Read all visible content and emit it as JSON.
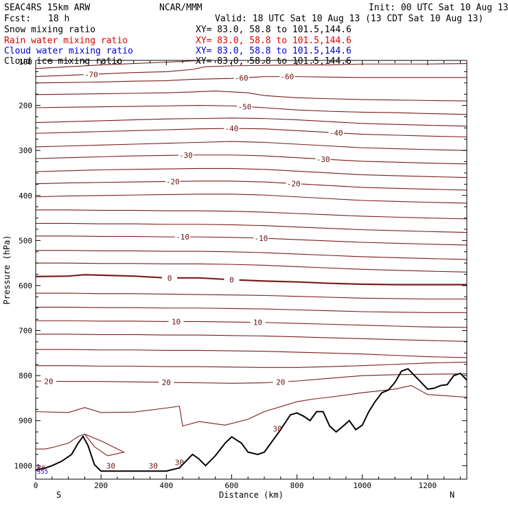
{
  "header": {
    "model": "SEAC4RS 15km ARW",
    "center": "NCAR/MMM",
    "init": "Init: 00 UTC Sat 10 Aug 13",
    "fcst_label": "Fcst:",
    "fcst_value": "18 h",
    "valid": "Valid: 18 UTC Sat 10 Aug 13 (13 CDT Sat 10 Aug 13)",
    "fields": [
      {
        "name": "Snow mixing ratio",
        "xy": "XY=  83.0, 58.8 to 101.5,144.6",
        "color": "#000000"
      },
      {
        "name": "Rain water mixing ratio",
        "xy": "XY=  83.0, 58.8 to 101.5,144.6",
        "color": "#e00000"
      },
      {
        "name": "Cloud water mixing ratio",
        "xy": "XY=  83.0, 58.8 to 101.5,144.6",
        "color": "#0000d0"
      },
      {
        "name": "Cloud ice mixing ratio",
        "xy": "XY=  83.0, 58.8 to 101.5,144.6",
        "color": "#000000"
      }
    ]
  },
  "chart_data": {
    "type": "line",
    "title": "",
    "xlabel": "Distance (km)",
    "ylabel": "Pressure (hPa)",
    "xlim": [
      0,
      1320
    ],
    "ylim": [
      1030,
      100
    ],
    "x_ticks": [
      0,
      200,
      400,
      600,
      800,
      1000,
      1200
    ],
    "y_ticks": [
      200,
      300,
      400,
      500,
      600,
      700,
      800,
      900,
      1000
    ],
    "y_top_tick_label": "100",
    "end_labels": {
      "left": "S",
      "right": "N"
    },
    "contour_color": "#7a1a1a",
    "terrain_color": "#000000",
    "isotherms": [
      {
        "x": [
          0,
          100,
          200,
          300,
          400,
          480,
          550,
          600,
          700,
          800,
          900,
          1000,
          1100,
          1200,
          1320
        ],
        "y": [
          118,
          114,
          110,
          107,
          104,
          101,
          99,
          98,
          93,
          89,
          85,
          81,
          78,
          75,
          72
        ],
        "label": ""
      },
      {
        "x": [
          0,
          100,
          200,
          300,
          400,
          480,
          520,
          600,
          700,
          800,
          900,
          1000,
          1100,
          1200,
          1320
        ],
        "y": [
          136,
          133,
          130,
          127,
          125,
          120,
          114,
          112,
          111,
          110,
          110,
          108,
          108,
          108,
          107
        ],
        "label": "-70",
        "label_x": [
          170
        ]
      },
      {
        "x": [
          0,
          100,
          200,
          300,
          400,
          480,
          600,
          700,
          800,
          900,
          1000,
          1100,
          1200,
          1320
        ],
        "y": [
          150,
          149,
          148,
          146,
          145,
          142,
          140,
          136,
          136,
          137,
          138,
          138,
          138,
          138
        ],
        "label": "-60",
        "label_x": [
          630,
          770
        ]
      },
      {
        "x": [
          0,
          100,
          200,
          300,
          400,
          480,
          550,
          650,
          700,
          800,
          900,
          1000,
          1100,
          1200,
          1320
        ],
        "y": [
          176,
          175,
          174,
          173,
          172,
          170,
          168,
          172,
          178,
          183,
          185,
          187,
          188,
          189,
          190
        ],
        "label": ""
      },
      {
        "x": [
          0,
          100,
          200,
          300,
          400,
          500,
          600,
          700,
          800,
          900,
          1000,
          1100,
          1200,
          1320
        ],
        "y": [
          205,
          204,
          203,
          202,
          201,
          200,
          201,
          205,
          210,
          213,
          215,
          216,
          218,
          220
        ],
        "label": "-50",
        "label_x": [
          640
        ]
      },
      {
        "x": [
          0,
          100,
          200,
          300,
          400,
          500,
          600,
          700,
          800,
          900,
          1000,
          1100,
          1200,
          1320
        ],
        "y": [
          238,
          236,
          234,
          232,
          230,
          229,
          228,
          229,
          232,
          236,
          240,
          242,
          244,
          246
        ],
        "label": ""
      },
      {
        "x": [
          0,
          100,
          200,
          300,
          400,
          500,
          600,
          700,
          800,
          900,
          1000,
          1100,
          1200,
          1320
        ],
        "y": [
          262,
          260,
          258,
          256,
          254,
          252,
          251,
          252,
          256,
          260,
          264,
          266,
          268,
          270
        ],
        "label": "-40",
        "label_x": [
          600,
          920
        ]
      },
      {
        "x": [
          0,
          100,
          200,
          300,
          400,
          500,
          600,
          700,
          800,
          900,
          1000,
          1100,
          1200,
          1320
        ],
        "y": [
          292,
          290,
          288,
          286,
          284,
          282,
          280,
          282,
          286,
          290,
          294,
          296,
          298,
          300
        ],
        "label": ""
      },
      {
        "x": [
          0,
          100,
          200,
          300,
          400,
          500,
          600,
          700,
          800,
          900,
          1000,
          1100,
          1200,
          1320
        ],
        "y": [
          318,
          316,
          314,
          312,
          311,
          310,
          310,
          312,
          316,
          320,
          324,
          326,
          328,
          330
        ],
        "label": "-30",
        "label_x": [
          460,
          880
        ]
      },
      {
        "x": [
          0,
          100,
          200,
          300,
          400,
          500,
          600,
          700,
          800,
          900,
          1000,
          1100,
          1200,
          1320
        ],
        "y": [
          347,
          345,
          343,
          342,
          341,
          340,
          340,
          342,
          346,
          350,
          354,
          356,
          358,
          360
        ],
        "label": ""
      },
      {
        "x": [
          0,
          100,
          200,
          300,
          400,
          500,
          600,
          700,
          800,
          900,
          1000,
          1100,
          1200,
          1320
        ],
        "y": [
          374,
          372,
          371,
          370,
          369,
          368,
          368,
          370,
          374,
          378,
          382,
          384,
          386,
          388
        ],
        "label": "-20",
        "label_x": [
          420,
          790
        ]
      },
      {
        "x": [
          0,
          100,
          200,
          300,
          400,
          500,
          600,
          700,
          800,
          900,
          1000,
          1100,
          1200,
          1320
        ],
        "y": [
          403,
          401,
          400,
          399,
          398,
          397,
          397,
          399,
          403,
          407,
          411,
          413,
          415,
          417
        ],
        "label": ""
      },
      {
        "x": [
          0,
          100,
          200,
          300,
          400,
          500,
          600,
          700,
          800,
          900,
          1000,
          1100,
          1200,
          1320
        ],
        "y": [
          432,
          432,
          433,
          433,
          434,
          434,
          435,
          437,
          440,
          443,
          446,
          448,
          450,
          452
        ],
        "label": ""
      },
      {
        "x": [
          0,
          100,
          200,
          300,
          400,
          500,
          600,
          700,
          800,
          900,
          1000,
          1100,
          1200,
          1320
        ],
        "y": [
          462,
          462,
          463,
          463,
          464,
          464,
          465,
          467,
          470,
          473,
          476,
          478,
          480,
          482
        ],
        "label": ""
      },
      {
        "x": [
          0,
          100,
          200,
          300,
          400,
          500,
          600,
          700,
          800,
          900,
          1000,
          1100,
          1200,
          1320
        ],
        "y": [
          490,
          490,
          491,
          491,
          492,
          492,
          493,
          495,
          498,
          501,
          504,
          506,
          508,
          510
        ],
        "label": "-10",
        "label_x": [
          450,
          690
        ]
      },
      {
        "x": [
          0,
          100,
          200,
          300,
          400,
          500,
          600,
          700,
          800,
          900,
          1000,
          1100,
          1200,
          1320
        ],
        "y": [
          522,
          522,
          523,
          523,
          524,
          524,
          525,
          527,
          530,
          533,
          536,
          538,
          540,
          542
        ],
        "label": ""
      },
      {
        "x": [
          0,
          100,
          200,
          300,
          400,
          500,
          600,
          700,
          800,
          900,
          1000,
          1100,
          1200,
          1320
        ],
        "y": [
          550,
          550,
          551,
          551,
          552,
          552,
          553,
          555,
          558,
          561,
          564,
          566,
          568,
          570
        ],
        "label": ""
      },
      {
        "x": [
          0,
          100,
          150,
          200,
          300,
          400,
          500,
          600,
          700,
          800,
          900,
          1000,
          1100,
          1200,
          1320
        ],
        "y": [
          580,
          579,
          576,
          577,
          579,
          583,
          583,
          587,
          590,
          592,
          595,
          597,
          598,
          598,
          598
        ],
        "label": "0",
        "label_x": [
          410,
          600
        ],
        "bold": true
      },
      {
        "x": [
          0,
          100,
          200,
          300,
          400,
          500,
          600,
          700,
          800,
          900,
          1000,
          1100,
          1200,
          1320
        ],
        "y": [
          617,
          617,
          618,
          618,
          619,
          620,
          621,
          622,
          624,
          626,
          628,
          629,
          630,
          630
        ],
        "label": ""
      },
      {
        "x": [
          0,
          100,
          200,
          300,
          400,
          500,
          600,
          700,
          800,
          900,
          1000,
          1100,
          1200,
          1320
        ],
        "y": [
          648,
          648,
          649,
          649,
          650,
          650,
          651,
          652,
          654,
          656,
          658,
          659,
          660,
          660
        ],
        "label": ""
      },
      {
        "x": [
          0,
          100,
          200,
          300,
          400,
          500,
          600,
          700,
          800,
          900,
          1000,
          1100,
          1200,
          1320
        ],
        "y": [
          678,
          678,
          679,
          679,
          680,
          680,
          681,
          682,
          684,
          686,
          688,
          690,
          692,
          693
        ],
        "label": "10",
        "label_x": [
          430,
          680
        ]
      },
      {
        "x": [
          0,
          100,
          200,
          300,
          400,
          500,
          600,
          700,
          800,
          900,
          1000,
          1100,
          1200,
          1320
        ],
        "y": [
          708,
          708,
          709,
          709,
          710,
          710,
          711,
          712,
          714,
          716,
          718,
          720,
          722,
          724
        ],
        "label": ""
      },
      {
        "x": [
          0,
          100,
          200,
          300,
          400,
          500,
          600,
          700,
          800,
          900,
          1000,
          1100,
          1200,
          1320
        ],
        "y": [
          742,
          742,
          743,
          743,
          744,
          744,
          745,
          746,
          748,
          750,
          752,
          755,
          758,
          760
        ],
        "label": ""
      },
      {
        "x": [
          0,
          100,
          200,
          300,
          400,
          500,
          600,
          700,
          800,
          900,
          1000,
          1100,
          1200,
          1320
        ],
        "y": [
          778,
          778,
          779,
          779,
          780,
          780,
          781,
          782,
          782,
          780,
          778,
          775,
          772,
          770
        ],
        "label": ""
      },
      {
        "x": [
          0,
          100,
          200,
          300,
          400,
          500,
          600,
          700,
          800,
          900,
          1000,
          1100,
          1200,
          1320
        ],
        "y": [
          812,
          813,
          813,
          814,
          815,
          816,
          817,
          816,
          812,
          806,
          800,
          798,
          797,
          796
        ],
        "label": "20",
        "label_x": [
          40,
          400,
          750
        ]
      },
      {
        "x": [
          0,
          100,
          150,
          200,
          300,
          400,
          440,
          450,
          500,
          580,
          650,
          700,
          800,
          850,
          900,
          1000,
          1100,
          1150,
          1200,
          1320
        ],
        "y": [
          880,
          882,
          871,
          882,
          881,
          872,
          868,
          912,
          902,
          910,
          897,
          880,
          858,
          852,
          848,
          838,
          830,
          822,
          842,
          848
        ],
        "label": ""
      }
    ],
    "terrain": {
      "x": [
        0,
        30,
        50,
        80,
        110,
        130,
        145,
        160,
        180,
        200,
        300,
        400,
        440,
        460,
        480,
        500,
        520,
        550,
        580,
        600,
        630,
        650,
        680,
        700,
        750,
        780,
        800,
        820,
        840,
        860,
        880,
        900,
        920,
        940,
        960,
        980,
        1000,
        1020,
        1040,
        1060,
        1080,
        1100,
        1120,
        1140,
        1160,
        1180,
        1200,
        1220,
        1240,
        1260,
        1280,
        1300,
        1320
      ],
      "y": [
        1010,
        1005,
        1000,
        990,
        975,
        950,
        935,
        955,
        998,
        1012,
        1012,
        1012,
        1005,
        990,
        975,
        985,
        1000,
        978,
        950,
        936,
        950,
        970,
        975,
        970,
        920,
        887,
        883,
        890,
        900,
        880,
        880,
        912,
        925,
        913,
        900,
        920,
        910,
        880,
        857,
        838,
        832,
        815,
        790,
        785,
        800,
        815,
        830,
        828,
        822,
        820,
        800,
        795,
        810
      ]
    },
    "terrain_label": "30",
    "terrain_label_x": [
      230,
      360,
      440,
      740
    ],
    "cloud_lines": [
      {
        "x": [
          0,
          30,
          60,
          100,
          130,
          150,
          180,
          220,
          270,
          200,
          160,
          150
        ],
        "y": [
          963,
          963,
          958,
          950,
          935,
          930,
          958,
          978,
          970,
          945,
          933,
          930
        ],
        "color": "#7a1a1a"
      }
    ],
    "near_surface_labels": [
      {
        "text": "1",
        "x": 2,
        "y": 1000,
        "color": "#0000d0"
      },
      {
        "text": "88",
        "x": 6,
        "y": 1003,
        "color": "#7a1a1a"
      },
      {
        "text": "2",
        "x": 2,
        "y": 1007,
        "color": "#7a1a1a"
      },
      {
        "text": "355",
        "x": 4,
        "y": 1012,
        "color": "#0000d0"
      }
    ]
  }
}
